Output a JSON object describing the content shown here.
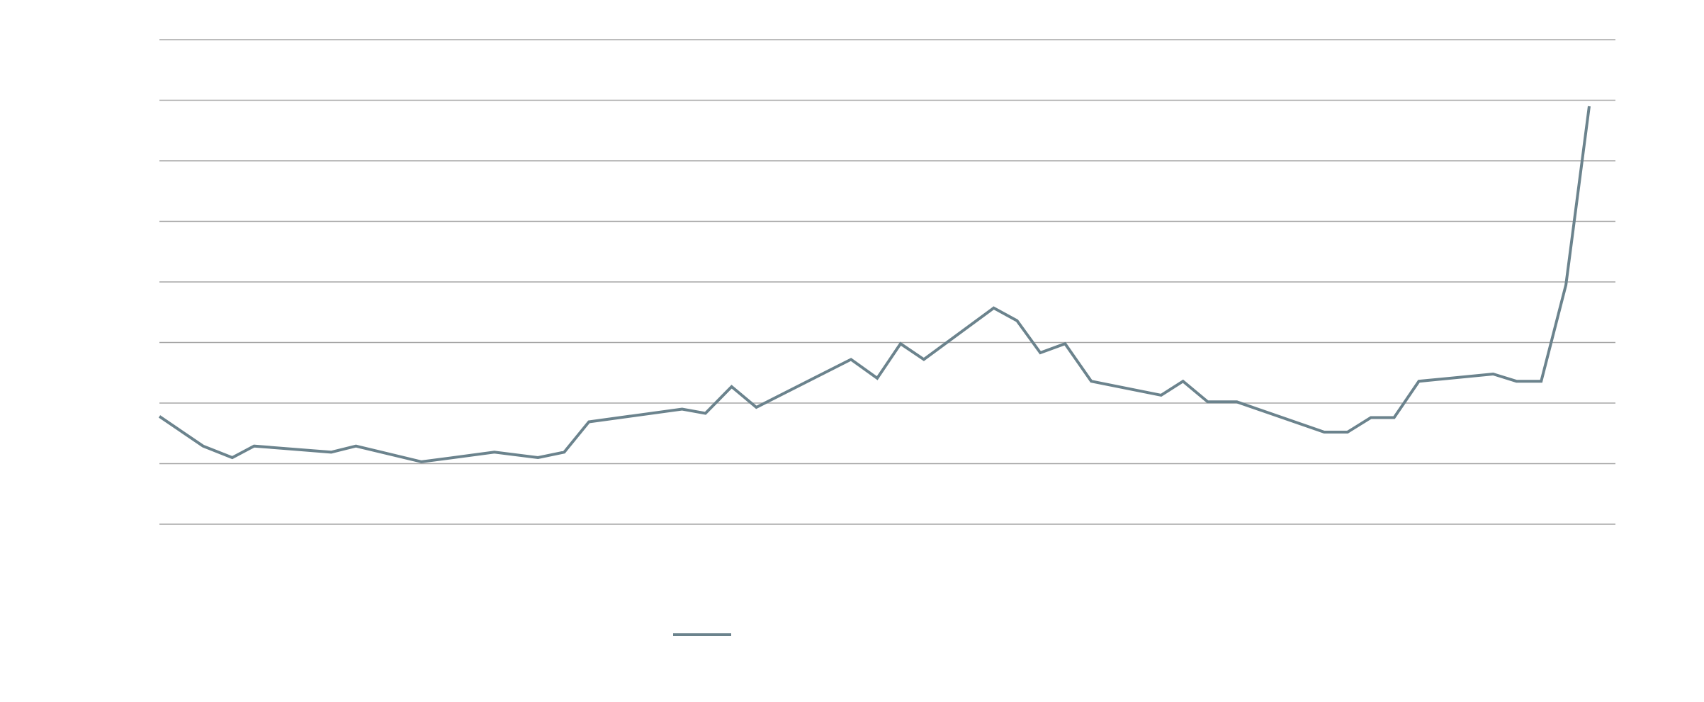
{
  "chart_data": {
    "type": "line",
    "title": "",
    "xlabel": "",
    "ylabel": "",
    "ylim": [
      0,
      8
    ],
    "grid": true,
    "legend_placement": "bottom-center",
    "series": [
      {
        "color": "#6b838d",
        "points": [
          [
            0.0,
            1.78
          ],
          [
            3.0,
            1.29
          ],
          [
            5.0,
            1.1
          ],
          [
            6.5,
            1.29
          ],
          [
            11.8,
            1.19
          ],
          [
            13.5,
            1.29
          ],
          [
            18.0,
            1.03
          ],
          [
            23.0,
            1.19
          ],
          [
            26.0,
            1.1
          ],
          [
            27.8,
            1.19
          ],
          [
            29.5,
            1.69
          ],
          [
            35.9,
            1.9
          ],
          [
            37.5,
            1.83
          ],
          [
            39.3,
            2.27
          ],
          [
            41.0,
            1.93
          ],
          [
            47.5,
            2.72
          ],
          [
            49.3,
            2.41
          ],
          [
            50.9,
            2.98
          ],
          [
            52.5,
            2.72
          ],
          [
            57.3,
            3.57
          ],
          [
            58.9,
            3.36
          ],
          [
            60.5,
            2.83
          ],
          [
            62.2,
            2.98
          ],
          [
            64.0,
            2.36
          ],
          [
            68.8,
            2.13
          ],
          [
            70.3,
            2.36
          ],
          [
            72.0,
            2.02
          ],
          [
            74.0,
            2.02
          ],
          [
            80.0,
            1.52
          ],
          [
            81.6,
            1.52
          ],
          [
            83.2,
            1.76
          ],
          [
            84.8,
            1.76
          ],
          [
            86.5,
            2.36
          ],
          [
            91.6,
            2.48
          ],
          [
            93.2,
            2.36
          ],
          [
            94.9,
            2.36
          ],
          [
            96.6,
            3.95
          ],
          [
            98.2,
            6.9
          ]
        ]
      }
    ]
  }
}
